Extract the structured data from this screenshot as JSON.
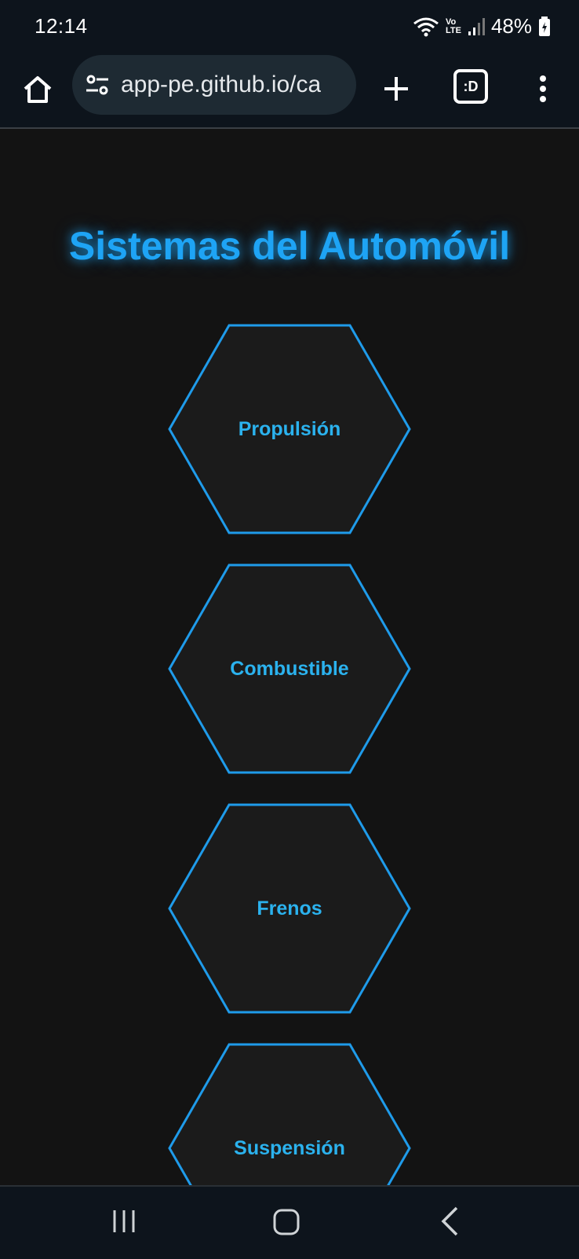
{
  "status_bar": {
    "time": "12:14",
    "battery_percent": "48%",
    "network_label": "LTE",
    "carrier_label": "Vo",
    "icons": [
      "wifi-icon",
      "volte-icon",
      "signal-icon",
      "battery-charging-icon"
    ]
  },
  "browser": {
    "url": "app-pe.github.io/ca",
    "tabs_label": ":D",
    "icons": [
      "home-icon",
      "site-settings-icon",
      "new-tab-icon",
      "tabs-icon",
      "more-vert-icon"
    ]
  },
  "page": {
    "title": "Sistemas del Automóvil",
    "systems": [
      {
        "label": "Propulsión"
      },
      {
        "label": "Combustible"
      },
      {
        "label": "Frenos"
      },
      {
        "label": "Suspensión"
      }
    ]
  },
  "nav_bar": {
    "icons": [
      "recents-icon",
      "home-nav-icon",
      "back-icon"
    ]
  },
  "colors": {
    "accent": "#1ea4f5",
    "hex_stroke": "#1f9bea",
    "hex_fill": "#1b1b1b",
    "hex_text": "#2bb2ee",
    "page_bg": "#131313",
    "chrome_bg": "#0d141c"
  }
}
